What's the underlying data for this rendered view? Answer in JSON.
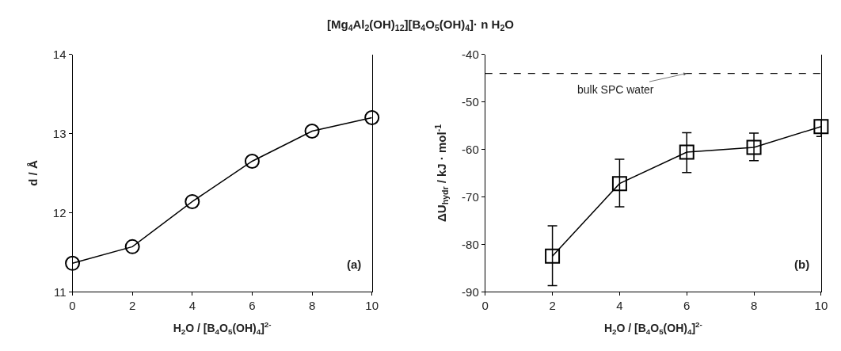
{
  "chart_data": [
    {
      "type": "line",
      "title": "[Mg$_{4}$Al$_{2}$(OH)$_{12}$][B$_{4}$O$_{5}$(OH)$_{4}$]· n H$_{2}$O",
      "xlabel": "H$_{2}$O / [B$_{4}$O$_{5}$(OH)$_{4}$]$^{2-}$",
      "ylabel": "d / Å",
      "x": [
        0,
        2,
        4,
        6,
        8,
        10
      ],
      "series": [
        {
          "color": "#000000",
          "values": [
            11.36,
            11.57,
            12.14,
            12.65,
            13.03,
            13.2
          ]
        }
      ],
      "xlim": [
        0,
        10
      ],
      "xticks": [
        0,
        2,
        4,
        6,
        8,
        10
      ],
      "ylim": [
        11,
        14
      ],
      "yticks": [
        11,
        12,
        13,
        14
      ],
      "marker": "circle",
      "line_style": "solid",
      "annotations": [
        "(a)"
      ]
    },
    {
      "type": "line",
      "xlabel": "H$_{2}$O / [B$_{4}$O$_{5}$(OH)$_{4}$]$^{2-}$",
      "ylabel": "ΔU$_{hydr}$ / kJ · mol$^{-1}$",
      "x": [
        2,
        4,
        6,
        8,
        10
      ],
      "series": [
        {
          "color": "#000000",
          "values": [
            -82.5,
            -67.2,
            -60.6,
            -59.6,
            -55.2
          ],
          "errors": [
            [
              -88.7,
              -76.1
            ],
            [
              -72.1,
              -62.1
            ],
            [
              -64.9,
              -56.5
            ],
            [
              -62.4,
              -56.6
            ],
            [
              -57.3,
              -53.8
            ]
          ]
        }
      ],
      "xlim": [
        0,
        10
      ],
      "xticks": [
        0,
        2,
        4,
        6,
        8,
        10
      ],
      "ylim": [
        -90,
        -40
      ],
      "yticks": [
        -90,
        -80,
        -70,
        -60,
        -50,
        -40
      ],
      "marker": "square",
      "line_style": "solid",
      "ref_lines": [
        {
          "axis": "y",
          "value": -44,
          "color": "#000000",
          "line_style": "dashed"
        }
      ],
      "annotations": [
        {
          "text": "bulk SPC water",
          "x": 6,
          "y": -44
        },
        "(b)"
      ]
    }
  ]
}
